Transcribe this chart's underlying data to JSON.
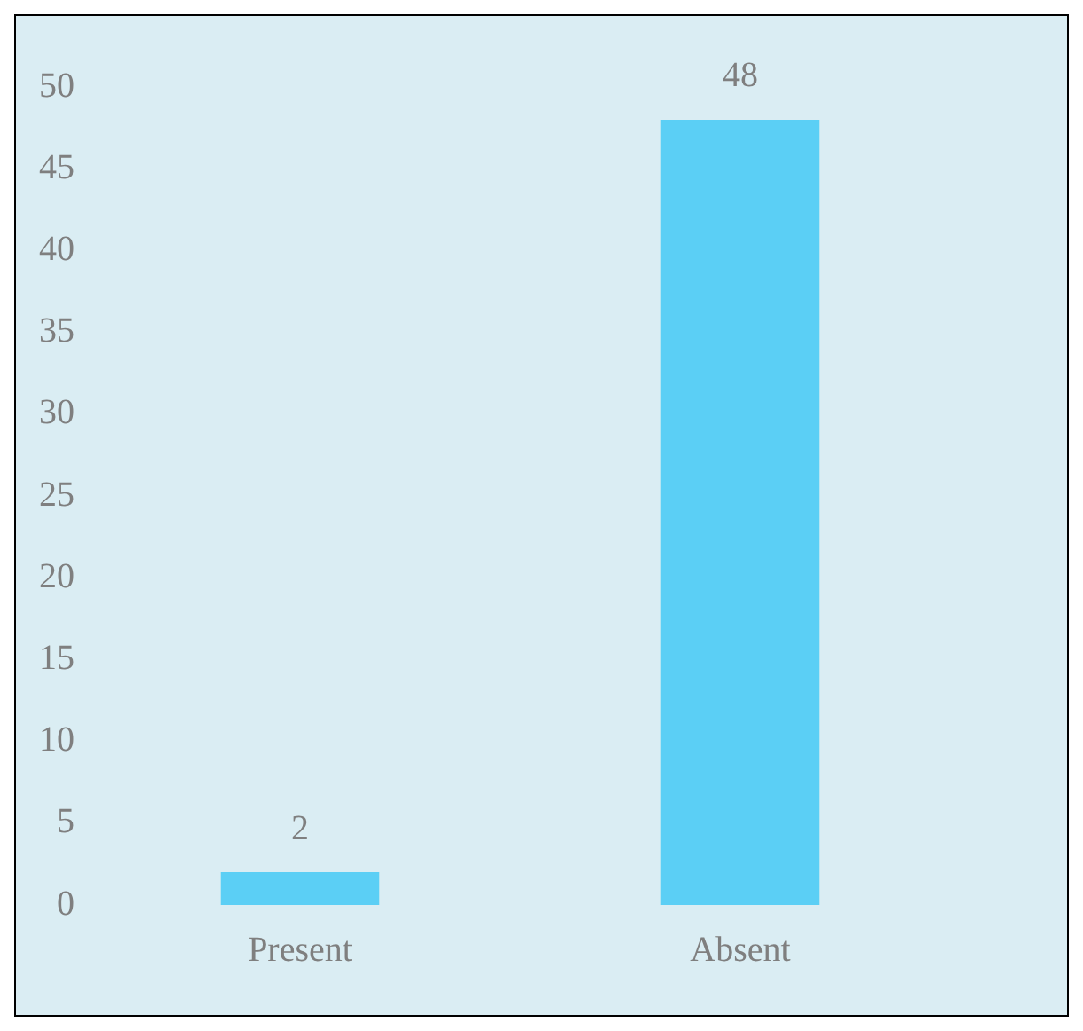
{
  "chart_data": {
    "type": "bar",
    "categories": [
      "Present",
      "Absent"
    ],
    "values": [
      2,
      48
    ],
    "color": "#5bcff5",
    "ylim": [
      0,
      50
    ],
    "yticks": [
      0,
      5,
      10,
      15,
      20,
      25,
      30,
      35,
      40,
      45,
      50
    ],
    "grid": false,
    "legend": false,
    "data_labels": true
  }
}
